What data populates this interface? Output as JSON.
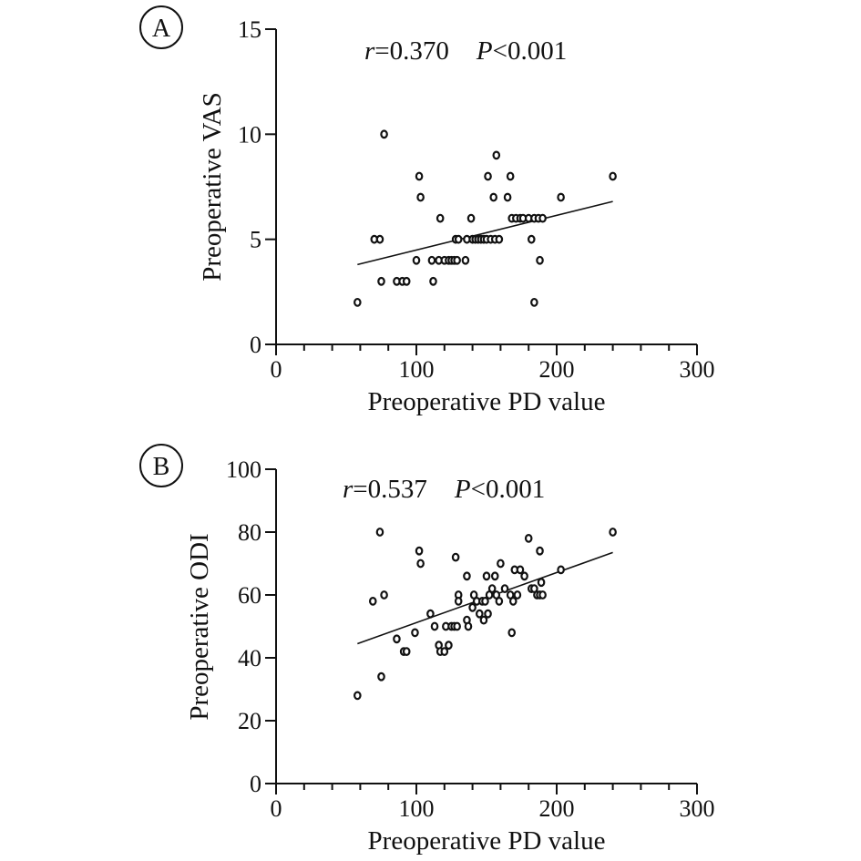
{
  "chart_data": [
    {
      "panel_label": "A",
      "type": "scatter",
      "title": "",
      "xlabel": "Preoperative PD value",
      "ylabel": "Preoperative VAS",
      "xlim": [
        0,
        300
      ],
      "ylim": [
        0,
        15
      ],
      "xticks": [
        0,
        100,
        200,
        300
      ],
      "yticks": [
        0,
        5,
        10,
        15
      ],
      "annotation": {
        "r_label": "r",
        "r_value": "=0.370",
        "p_label": "P",
        "p_value": "<0.001"
      },
      "fit_line": {
        "x": [
          58,
          240
        ],
        "y": [
          3.8,
          6.8
        ]
      },
      "points": [
        [
          58,
          2
        ],
        [
          70,
          5
        ],
        [
          74,
          5
        ],
        [
          75,
          3
        ],
        [
          77,
          10
        ],
        [
          86,
          3
        ],
        [
          90,
          3
        ],
        [
          93,
          3
        ],
        [
          100,
          4
        ],
        [
          102,
          8
        ],
        [
          103,
          7
        ],
        [
          111,
          4
        ],
        [
          112,
          3
        ],
        [
          116,
          4
        ],
        [
          117,
          6
        ],
        [
          120,
          4
        ],
        [
          123,
          4
        ],
        [
          125,
          4
        ],
        [
          127,
          4
        ],
        [
          128,
          5
        ],
        [
          129,
          4
        ],
        [
          130,
          5
        ],
        [
          135,
          4
        ],
        [
          136,
          5
        ],
        [
          139,
          6
        ],
        [
          140,
          5
        ],
        [
          142,
          5
        ],
        [
          144,
          5
        ],
        [
          146,
          5
        ],
        [
          148,
          5
        ],
        [
          150,
          5
        ],
        [
          151,
          8
        ],
        [
          153,
          5
        ],
        [
          155,
          7
        ],
        [
          156,
          5
        ],
        [
          157,
          9
        ],
        [
          159,
          5
        ],
        [
          165,
          7
        ],
        [
          167,
          8
        ],
        [
          168,
          6
        ],
        [
          171,
          6
        ],
        [
          174,
          6
        ],
        [
          176,
          6
        ],
        [
          180,
          6
        ],
        [
          182,
          5
        ],
        [
          184,
          6
        ],
        [
          184,
          2
        ],
        [
          187,
          6
        ],
        [
          188,
          4
        ],
        [
          190,
          6
        ],
        [
          203,
          7
        ],
        [
          240,
          8
        ]
      ]
    },
    {
      "panel_label": "B",
      "type": "scatter",
      "title": "",
      "xlabel": "Preoperative PD value",
      "ylabel": "Preoperative ODI",
      "xlim": [
        0,
        300
      ],
      "ylim": [
        0,
        100
      ],
      "xticks": [
        0,
        100,
        200,
        300
      ],
      "yticks": [
        0,
        20,
        40,
        60,
        80,
        100
      ],
      "annotation": {
        "r_label": "r",
        "r_value": "=0.537",
        "p_label": "P",
        "p_value": "<0.001"
      },
      "fit_line": {
        "x": [
          58,
          240
        ],
        "y": [
          44.5,
          73.5
        ]
      },
      "points": [
        [
          58,
          28
        ],
        [
          69,
          58
        ],
        [
          74,
          80
        ],
        [
          75,
          34
        ],
        [
          77,
          60
        ],
        [
          86,
          46
        ],
        [
          91,
          42
        ],
        [
          93,
          42
        ],
        [
          99,
          48
        ],
        [
          102,
          74
        ],
        [
          103,
          70
        ],
        [
          110,
          54
        ],
        [
          113,
          50
        ],
        [
          116,
          44
        ],
        [
          117,
          42
        ],
        [
          120,
          42
        ],
        [
          121,
          50
        ],
        [
          123,
          44
        ],
        [
          125,
          50
        ],
        [
          127,
          50
        ],
        [
          128,
          72
        ],
        [
          129,
          50
        ],
        [
          130,
          60
        ],
        [
          130,
          58
        ],
        [
          136,
          66
        ],
        [
          136,
          52
        ],
        [
          137,
          50
        ],
        [
          140,
          56
        ],
        [
          141,
          60
        ],
        [
          143,
          58
        ],
        [
          145,
          54
        ],
        [
          147,
          58
        ],
        [
          148,
          52
        ],
        [
          149,
          58
        ],
        [
          150,
          66
        ],
        [
          151,
          54
        ],
        [
          152,
          60
        ],
        [
          154,
          62
        ],
        [
          156,
          66
        ],
        [
          157,
          60
        ],
        [
          159,
          58
        ],
        [
          160,
          70
        ],
        [
          163,
          62
        ],
        [
          167,
          60
        ],
        [
          168,
          48
        ],
        [
          169,
          58
        ],
        [
          170,
          68
        ],
        [
          172,
          60
        ],
        [
          174,
          68
        ],
        [
          177,
          66
        ],
        [
          180,
          78
        ],
        [
          182,
          62
        ],
        [
          184,
          62
        ],
        [
          186,
          60
        ],
        [
          188,
          60
        ],
        [
          188,
          74
        ],
        [
          189,
          64
        ],
        [
          190,
          60
        ],
        [
          203,
          68
        ],
        [
          240,
          80
        ]
      ]
    }
  ]
}
